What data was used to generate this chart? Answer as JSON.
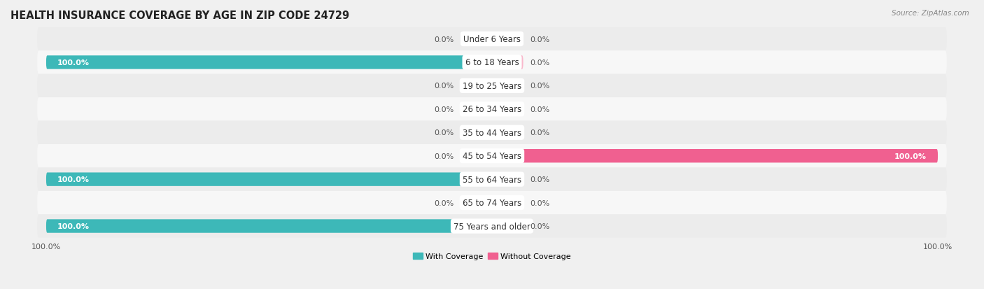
{
  "title": "HEALTH INSURANCE COVERAGE BY AGE IN ZIP CODE 24729",
  "source": "Source: ZipAtlas.com",
  "categories": [
    "Under 6 Years",
    "6 to 18 Years",
    "19 to 25 Years",
    "26 to 34 Years",
    "35 to 44 Years",
    "45 to 54 Years",
    "55 to 64 Years",
    "65 to 74 Years",
    "75 Years and older"
  ],
  "with_coverage": [
    0.0,
    100.0,
    0.0,
    0.0,
    0.0,
    0.0,
    100.0,
    0.0,
    100.0
  ],
  "without_coverage": [
    0.0,
    0.0,
    0.0,
    0.0,
    0.0,
    100.0,
    0.0,
    0.0,
    0.0
  ],
  "color_with": "#3db8b8",
  "color_without": "#f06090",
  "color_with_stub": "#9dd8e0",
  "color_without_stub": "#f9b8cc",
  "bg_even": "#ececec",
  "bg_odd": "#f7f7f7",
  "title_fontsize": 10.5,
  "source_fontsize": 7.5,
  "label_fontsize": 8.5,
  "value_fontsize": 8,
  "bar_height": 0.58,
  "stub_size": 7.0,
  "max_val": 100.0
}
